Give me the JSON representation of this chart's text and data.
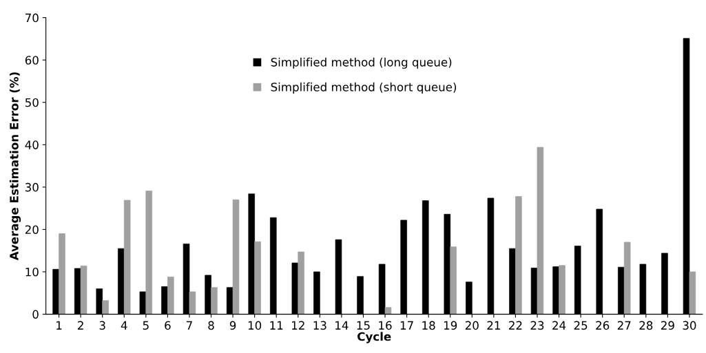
{
  "chart_data": {
    "type": "bar",
    "xlabel": "Cycle",
    "ylabel": "Average Estimation Error (%)",
    "categories": [
      "1",
      "2",
      "3",
      "4",
      "5",
      "6",
      "7",
      "8",
      "9",
      "10",
      "11",
      "12",
      "13",
      "14",
      "15",
      "16",
      "17",
      "18",
      "19",
      "20",
      "21",
      "22",
      "23",
      "24",
      "25",
      "26",
      "27",
      "28",
      "29",
      "30"
    ],
    "series": [
      {
        "name": "Simplified method (long queue)",
        "color": "#000000",
        "values": [
          10.6,
          10.8,
          6.0,
          15.5,
          5.3,
          6.5,
          16.6,
          9.2,
          6.3,
          28.4,
          22.8,
          12.1,
          10.0,
          17.6,
          8.9,
          11.8,
          22.2,
          26.8,
          23.6,
          7.6,
          27.4,
          15.5,
          10.9,
          11.2,
          16.1,
          24.8,
          11.1,
          11.8,
          14.4,
          65.1
        ]
      },
      {
        "name": "Simplified method (short queue)",
        "color": "#a0a0a0",
        "values": [
          19.0,
          11.4,
          3.2,
          26.9,
          29.1,
          8.8,
          5.3,
          6.3,
          27.0,
          17.1,
          null,
          14.7,
          null,
          null,
          null,
          1.6,
          null,
          null,
          15.9,
          null,
          null,
          27.8,
          39.4,
          11.5,
          null,
          null,
          17.0,
          null,
          null,
          10.0
        ]
      }
    ],
    "ylim": [
      0,
      70
    ],
    "yticks": [
      0,
      10,
      20,
      30,
      40,
      50,
      60,
      70
    ],
    "grid": false,
    "legend": "top"
  }
}
